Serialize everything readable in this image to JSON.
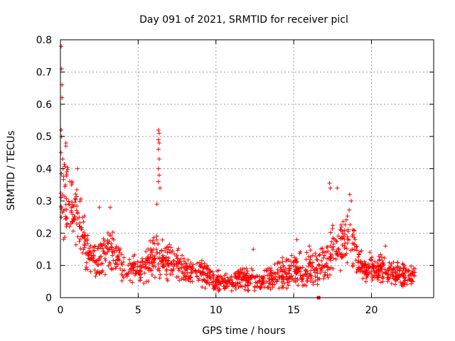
{
  "chart_data": {
    "type": "scatter",
    "title": "Day 091 of 2021, SRMTID for receiver picl",
    "xlabel": "GPS time / hours",
    "ylabel": "SRMTID / TECUs",
    "xlim": [
      0,
      24
    ],
    "ylim": [
      0,
      0.8
    ],
    "grid": true,
    "marker": "plus",
    "color": "#ff0000",
    "xticks": [
      "0",
      "5",
      "10",
      "15",
      "20"
    ],
    "yticks": [
      "0",
      "0.1",
      "0.2",
      "0.3",
      "0.4",
      "0.5",
      "0.6",
      "0.7",
      "0.8"
    ],
    "series": [
      {
        "name": "SRMTID",
        "profile": [
          {
            "x": 0.0,
            "base": 0.32,
            "spread": 0.14
          },
          {
            "x": 0.3,
            "base": 0.3,
            "spread": 0.1
          },
          {
            "x": 0.8,
            "base": 0.27,
            "spread": 0.08
          },
          {
            "x": 1.3,
            "base": 0.24,
            "spread": 0.08
          },
          {
            "x": 1.7,
            "base": 0.14,
            "spread": 0.06
          },
          {
            "x": 2.5,
            "base": 0.12,
            "spread": 0.05
          },
          {
            "x": 3.2,
            "base": 0.15,
            "spread": 0.06
          },
          {
            "x": 4.0,
            "base": 0.1,
            "spread": 0.04
          },
          {
            "x": 5.0,
            "base": 0.08,
            "spread": 0.04
          },
          {
            "x": 6.0,
            "base": 0.12,
            "spread": 0.06
          },
          {
            "x": 7.0,
            "base": 0.11,
            "spread": 0.05
          },
          {
            "x": 8.0,
            "base": 0.09,
            "spread": 0.04
          },
          {
            "x": 9.0,
            "base": 0.08,
            "spread": 0.04
          },
          {
            "x": 10.0,
            "base": 0.05,
            "spread": 0.03
          },
          {
            "x": 11.0,
            "base": 0.05,
            "spread": 0.03
          },
          {
            "x": 12.0,
            "base": 0.06,
            "spread": 0.03
          },
          {
            "x": 13.0,
            "base": 0.05,
            "spread": 0.03
          },
          {
            "x": 14.0,
            "base": 0.07,
            "spread": 0.04
          },
          {
            "x": 15.0,
            "base": 0.08,
            "spread": 0.05
          },
          {
            "x": 16.0,
            "base": 0.09,
            "spread": 0.05
          },
          {
            "x": 17.0,
            "base": 0.1,
            "spread": 0.06
          },
          {
            "x": 17.5,
            "base": 0.15,
            "spread": 0.07
          },
          {
            "x": 18.0,
            "base": 0.16,
            "spread": 0.07
          },
          {
            "x": 18.6,
            "base": 0.2,
            "spread": 0.08
          },
          {
            "x": 19.2,
            "base": 0.1,
            "spread": 0.04
          },
          {
            "x": 20.0,
            "base": 0.09,
            "spread": 0.04
          },
          {
            "x": 21.0,
            "base": 0.08,
            "spread": 0.04
          },
          {
            "x": 22.0,
            "base": 0.07,
            "spread": 0.03
          },
          {
            "x": 22.8,
            "base": 0.06,
            "spread": 0.03
          }
        ],
        "sample_count": 1400,
        "outliers": [
          {
            "x": 0.05,
            "y": 0.78
          },
          {
            "x": 0.08,
            "y": 0.71
          },
          {
            "x": 0.1,
            "y": 0.66
          },
          {
            "x": 0.1,
            "y": 0.62
          },
          {
            "x": 0.05,
            "y": 0.52
          },
          {
            "x": 0.08,
            "y": 0.5
          },
          {
            "x": 0.35,
            "y": 0.48
          },
          {
            "x": 0.35,
            "y": 0.47
          },
          {
            "x": 0.15,
            "y": 0.43
          },
          {
            "x": 6.3,
            "y": 0.52
          },
          {
            "x": 6.35,
            "y": 0.51
          },
          {
            "x": 6.3,
            "y": 0.49
          },
          {
            "x": 6.35,
            "y": 0.48
          },
          {
            "x": 6.3,
            "y": 0.46
          },
          {
            "x": 6.35,
            "y": 0.43
          },
          {
            "x": 6.3,
            "y": 0.4
          },
          {
            "x": 6.35,
            "y": 0.38
          },
          {
            "x": 6.3,
            "y": 0.36
          },
          {
            "x": 6.4,
            "y": 0.34
          },
          {
            "x": 6.2,
            "y": 0.29
          },
          {
            "x": 17.3,
            "y": 0.355
          },
          {
            "x": 17.35,
            "y": 0.34
          },
          {
            "x": 17.8,
            "y": 0.34
          },
          {
            "x": 18.6,
            "y": 0.32
          },
          {
            "x": 18.7,
            "y": 0.3
          },
          {
            "x": 0.4,
            "y": 0.39
          },
          {
            "x": 1.1,
            "y": 0.4
          },
          {
            "x": 3.2,
            "y": 0.28
          },
          {
            "x": 2.5,
            "y": 0.28
          },
          {
            "x": 12.4,
            "y": 0.15
          },
          {
            "x": 15.2,
            "y": 0.18
          },
          {
            "x": 16.0,
            "y": 0.16
          },
          {
            "x": 20.9,
            "y": 0.16
          }
        ],
        "square_marker": {
          "x": 16.6,
          "y": 0.0
        }
      }
    ]
  }
}
